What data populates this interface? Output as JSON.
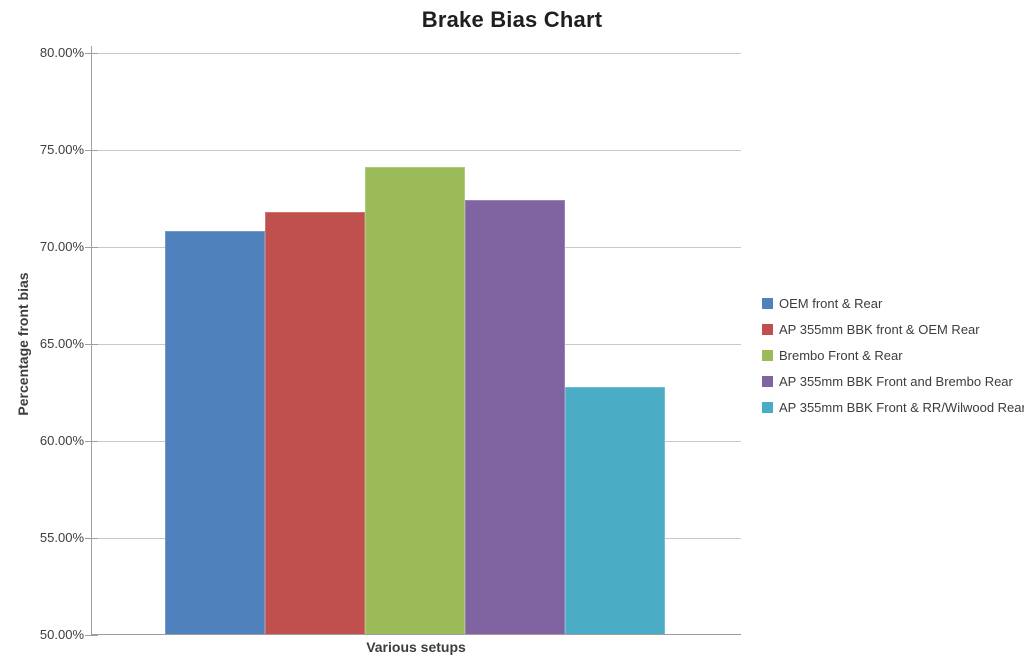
{
  "chart_data": {
    "type": "bar",
    "title": "Brake Bias Chart",
    "xlabel": "Various setups",
    "ylabel": "Percentage front bias",
    "ylim": [
      50,
      80
    ],
    "grid": true,
    "legend_position": "right",
    "yticks": [
      {
        "value": 80,
        "label": "80.00%"
      },
      {
        "value": 75,
        "label": "75.00%"
      },
      {
        "value": 70,
        "label": "70.00%"
      },
      {
        "value": 65,
        "label": "65.00%"
      },
      {
        "value": 60,
        "label": "60.00%"
      },
      {
        "value": 55,
        "label": "55.00%"
      },
      {
        "value": 50,
        "label": "50.00%"
      }
    ],
    "series": [
      {
        "name": "OEM front & Rear",
        "value": 70.8,
        "color": "#4F81BD",
        "border_color": "#729ACA"
      },
      {
        "name": "AP 355mm BBK front & OEM Rear",
        "value": 71.8,
        "color": "#C0504D",
        "border_color": "#D07370"
      },
      {
        "name": "Brembo Front & Rear",
        "value": 74.1,
        "color": "#9BBB59",
        "border_color": "#AFC97C"
      },
      {
        "name": "AP 355mm BBK Front and Brembo Rear",
        "value": 72.4,
        "color": "#8064A2",
        "border_color": "#9A82B6"
      },
      {
        "name": "AP 355mm BBK Front & RR/Wilwood Rear",
        "value": 62.8,
        "color": "#4BACC6",
        "border_color": "#71BDD2"
      }
    ],
    "colors": {
      "gridline": "#C9C9C9",
      "axis": "#9E9E9E",
      "title_text": "#1F1F1F",
      "label_text": "#3D3D3D",
      "background": "#FFFFFF"
    }
  }
}
